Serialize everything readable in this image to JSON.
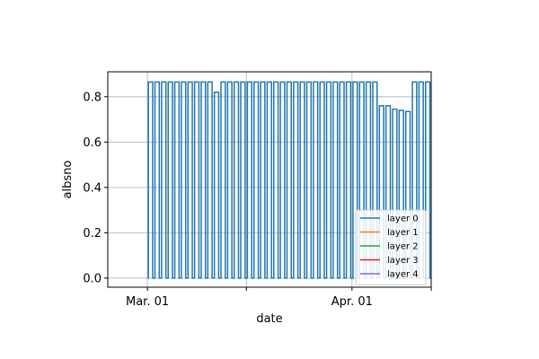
{
  "chart_data": {
    "type": "line",
    "title": "",
    "xlabel": "date",
    "ylabel": "albsno",
    "xlim": [
      "2024-02-24",
      "2024-04-13"
    ],
    "ylim": [
      -0.04,
      0.91
    ],
    "x_tick_labels": [
      {
        "date": "2024-03-01",
        "label": "Mar. 01"
      },
      {
        "date": "2024-03-16",
        "label": ""
      },
      {
        "date": "2024-04-01",
        "label": "Apr. 01"
      },
      {
        "date": "2024-04-13",
        "label": ""
      }
    ],
    "y_ticks": [
      {
        "value": 0.0,
        "label": "0.0"
      },
      {
        "value": 0.2,
        "label": "0.2"
      },
      {
        "value": 0.4,
        "label": "0.4"
      },
      {
        "value": 0.6,
        "label": "0.6"
      },
      {
        "value": 0.8,
        "label": "0.8"
      }
    ],
    "grid": true,
    "legend_position": "lower right",
    "series": [
      {
        "name": "layer 0",
        "color": "#1f77b4",
        "start": "2024-03-01",
        "end": "2024-04-13",
        "cycle_days": 1,
        "day_value": 0.865,
        "night_value": 0.0,
        "dips": [
          {
            "date": "2024-03-11",
            "value": 0.82
          },
          {
            "date": "2024-04-05",
            "value": 0.76
          },
          {
            "date": "2024-04-06",
            "value": 0.76
          },
          {
            "date": "2024-04-07",
            "value": 0.745
          },
          {
            "date": "2024-04-08",
            "value": 0.74
          },
          {
            "date": "2024-04-09",
            "value": 0.735
          }
        ]
      },
      {
        "name": "layer 1",
        "color": "#ff7f0e"
      },
      {
        "name": "layer 2",
        "color": "#2ca02c"
      },
      {
        "name": "layer 3",
        "color": "#d62728"
      },
      {
        "name": "layer 4",
        "color": "#9467bd"
      }
    ]
  }
}
